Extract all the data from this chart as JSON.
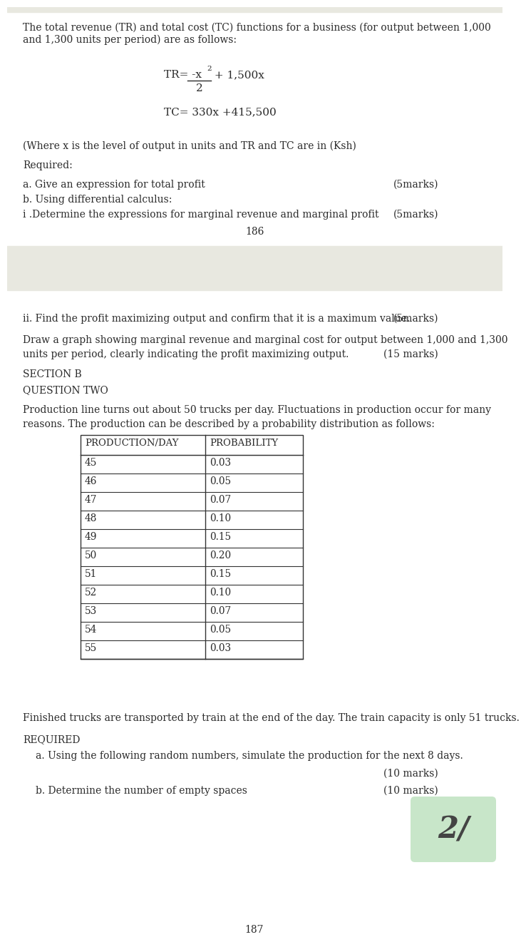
{
  "bg_color": "#ffffff",
  "text_color": "#2a2a2a",
  "font_size_body": 10.0,
  "para1": "The total revenue (TR) and total cost (TC) functions for a business (for output between 1,000\nand 1,300 units per period) are as follows:",
  "formula_TC": "TC= 330x +415,500",
  "para2": "(Where x is the level of output in units and TR and TC are in (Ksh)",
  "required": "Required:",
  "qa": "a. Give an expression for total profit",
  "qa_marks": "(5marks)",
  "qb": "b. Using differential calculus:",
  "qi": "i .Determine the expressions for marginal revenue and marginal profit",
  "qi_marks": "(5marks)",
  "page_num1": "186",
  "qii": "ii. Find the profit maximizing output and confirm that it is a maximum value.",
  "qii_marks": "(5marks)",
  "draw_q_line1": "Draw a graph showing marginal revenue and marginal cost for output between 1,000 and 1,300",
  "draw_q_line2": "units per period, clearly indicating the profit maximizing output.",
  "draw_marks": "(15 marks)",
  "section_b": "SECTION B",
  "q_two": "QUESTION TWO",
  "prod_desc_line1": "Production line turns out about 50 trucks per day. Fluctuations in production occur for many",
  "prod_desc_line2": "reasons. The production can be described by a probability distribution as follows:",
  "table_header": [
    "PRODUCTION/DAY",
    "PROBABILITY"
  ],
  "table_data": [
    [
      "45",
      "0.03"
    ],
    [
      "46",
      "0.05"
    ],
    [
      "47",
      "0.07"
    ],
    [
      "48",
      "0.10"
    ],
    [
      "49",
      "0.15"
    ],
    [
      "50",
      "0.20"
    ],
    [
      "51",
      "0.15"
    ],
    [
      "52",
      "0.10"
    ],
    [
      "53",
      "0.07"
    ],
    [
      "54",
      "0.05"
    ],
    [
      "55",
      "0.03"
    ]
  ],
  "finished_trucks": "Finished trucks are transported by train at the end of the day. The train capacity is only 51 trucks.",
  "required2": "REQUIRED",
  "req_a": "a. Using the following random numbers, simulate the production for the next 8 days.",
  "req_a_marks": "(10 marks)",
  "req_b": "b. Determine the number of empty spaces",
  "req_b_marks": "(10 marks)",
  "page_num2": "187",
  "stamp_color": "#c8e6c9",
  "stamp_text": "2/",
  "top_stripe_color": "#e8e8e0",
  "page_divider_color": "#e8e8e0"
}
